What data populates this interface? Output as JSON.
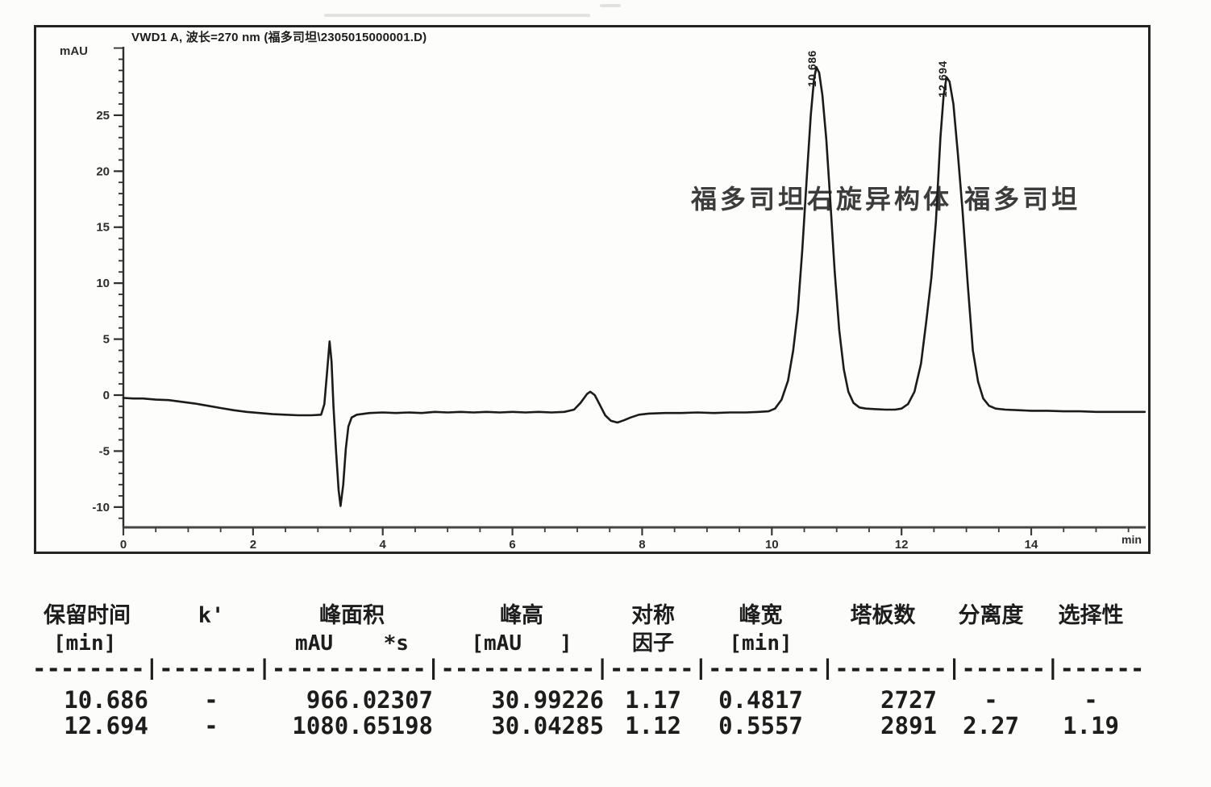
{
  "chromatogram": {
    "title": "VWD1 A, 波长=270 nm (福多司坦\\2305015000001.D)",
    "y_axis_unit": "mAU",
    "x_axis_unit": "min",
    "annotation": "福多司坦右旋异构体 福多司坦"
  },
  "chart_data": {
    "type": "line",
    "title": "VWD1 A, 波长=270 nm (福多司坦\\2305015000001.D)",
    "xlabel": "min",
    "ylabel": "mAU",
    "xlim": [
      0,
      15.8
    ],
    "ylim": [
      -12.5,
      31
    ],
    "x_ticks": [
      0,
      2,
      4,
      6,
      8,
      10,
      12,
      14
    ],
    "y_ticks": [
      25,
      20,
      15,
      10,
      5,
      0,
      -5,
      -10
    ],
    "grid": false,
    "legend": false,
    "peaks": [
      {
        "rt_label": "10.686",
        "rt": 10.686,
        "apex_mau": 29.3,
        "name": "福多司坦右旋异构体",
        "height_mau": 30.99226,
        "area": 966.02307
      },
      {
        "rt_label": "12.694",
        "rt": 12.694,
        "apex_mau": 28.4,
        "name": "福多司坦",
        "height_mau": 30.04285,
        "area": 1080.65198
      }
    ],
    "series": [
      {
        "name": "VWD1 A 270 nm",
        "points": [
          [
            0,
            -0.25
          ],
          [
            0.15,
            -0.3
          ],
          [
            0.3,
            -0.3
          ],
          [
            0.5,
            -0.4
          ],
          [
            0.7,
            -0.45
          ],
          [
            0.9,
            -0.6
          ],
          [
            1.1,
            -0.75
          ],
          [
            1.3,
            -0.95
          ],
          [
            1.5,
            -1.15
          ],
          [
            1.7,
            -1.35
          ],
          [
            1.9,
            -1.5
          ],
          [
            2.1,
            -1.6
          ],
          [
            2.3,
            -1.7
          ],
          [
            2.5,
            -1.75
          ],
          [
            2.7,
            -1.8
          ],
          [
            2.9,
            -1.8
          ],
          [
            3.05,
            -1.75
          ],
          [
            3.1,
            -0.8
          ],
          [
            3.14,
            2.0
          ],
          [
            3.18,
            4.8
          ],
          [
            3.21,
            3.0
          ],
          [
            3.24,
            -1.0
          ],
          [
            3.28,
            -5.0
          ],
          [
            3.32,
            -8.5
          ],
          [
            3.35,
            -9.9
          ],
          [
            3.39,
            -8.0
          ],
          [
            3.43,
            -4.8
          ],
          [
            3.47,
            -2.8
          ],
          [
            3.52,
            -2.0
          ],
          [
            3.6,
            -1.75
          ],
          [
            3.8,
            -1.6
          ],
          [
            4.0,
            -1.55
          ],
          [
            4.2,
            -1.6
          ],
          [
            4.4,
            -1.55
          ],
          [
            4.6,
            -1.6
          ],
          [
            4.8,
            -1.5
          ],
          [
            5.0,
            -1.55
          ],
          [
            5.2,
            -1.5
          ],
          [
            5.4,
            -1.55
          ],
          [
            5.6,
            -1.5
          ],
          [
            5.8,
            -1.55
          ],
          [
            6.0,
            -1.5
          ],
          [
            6.2,
            -1.55
          ],
          [
            6.4,
            -1.5
          ],
          [
            6.6,
            -1.55
          ],
          [
            6.8,
            -1.5
          ],
          [
            6.95,
            -1.3
          ],
          [
            7.05,
            -0.7
          ],
          [
            7.15,
            0.1
          ],
          [
            7.2,
            0.3
          ],
          [
            7.27,
            0.0
          ],
          [
            7.35,
            -0.9
          ],
          [
            7.43,
            -1.8
          ],
          [
            7.52,
            -2.3
          ],
          [
            7.62,
            -2.45
          ],
          [
            7.72,
            -2.25
          ],
          [
            7.82,
            -2.0
          ],
          [
            7.95,
            -1.75
          ],
          [
            8.1,
            -1.65
          ],
          [
            8.35,
            -1.6
          ],
          [
            8.6,
            -1.6
          ],
          [
            8.85,
            -1.55
          ],
          [
            9.1,
            -1.6
          ],
          [
            9.35,
            -1.55
          ],
          [
            9.6,
            -1.55
          ],
          [
            9.8,
            -1.5
          ],
          [
            9.95,
            -1.45
          ],
          [
            10.05,
            -1.2
          ],
          [
            10.15,
            -0.4
          ],
          [
            10.25,
            1.3
          ],
          [
            10.33,
            4.0
          ],
          [
            10.4,
            7.5
          ],
          [
            10.47,
            13.0
          ],
          [
            10.54,
            19.5
          ],
          [
            10.6,
            25.0
          ],
          [
            10.65,
            28.2
          ],
          [
            10.686,
            29.3
          ],
          [
            10.73,
            28.8
          ],
          [
            10.78,
            26.8
          ],
          [
            10.84,
            22.8
          ],
          [
            10.9,
            17.5
          ],
          [
            10.97,
            11.0
          ],
          [
            11.04,
            5.8
          ],
          [
            11.11,
            2.3
          ],
          [
            11.18,
            0.3
          ],
          [
            11.26,
            -0.7
          ],
          [
            11.35,
            -1.1
          ],
          [
            11.45,
            -1.2
          ],
          [
            11.6,
            -1.25
          ],
          [
            11.75,
            -1.3
          ],
          [
            11.9,
            -1.3
          ],
          [
            12.0,
            -1.2
          ],
          [
            12.1,
            -0.8
          ],
          [
            12.2,
            0.3
          ],
          [
            12.3,
            2.8
          ],
          [
            12.38,
            6.5
          ],
          [
            12.46,
            10.5
          ],
          [
            12.53,
            15.5
          ],
          [
            12.6,
            23.0
          ],
          [
            12.65,
            26.8
          ],
          [
            12.694,
            28.4
          ],
          [
            12.74,
            28.0
          ],
          [
            12.8,
            26.0
          ],
          [
            12.87,
            21.5
          ],
          [
            12.94,
            16.5
          ],
          [
            13.02,
            10.0
          ],
          [
            13.1,
            4.0
          ],
          [
            13.18,
            1.2
          ],
          [
            13.26,
            -0.3
          ],
          [
            13.35,
            -0.95
          ],
          [
            13.45,
            -1.2
          ],
          [
            13.6,
            -1.3
          ],
          [
            13.8,
            -1.35
          ],
          [
            14.0,
            -1.4
          ],
          [
            14.25,
            -1.4
          ],
          [
            14.5,
            -1.45
          ],
          [
            14.75,
            -1.45
          ],
          [
            15.0,
            -1.5
          ],
          [
            15.25,
            -1.5
          ],
          [
            15.5,
            -1.5
          ],
          [
            15.75,
            -1.5
          ]
        ]
      }
    ]
  },
  "table": {
    "columns": [
      {
        "h1": "保留时间",
        "h2": "[min]"
      },
      {
        "h1": "k'",
        "h2": ""
      },
      {
        "h1": "峰面积",
        "h2": "mAU    *s"
      },
      {
        "h1": "峰高",
        "h2": "[mAU   ]"
      },
      {
        "h1": "对称",
        "h2": "因子"
      },
      {
        "h1": "峰宽",
        "h2": "[min]"
      },
      {
        "h1": "塔板数",
        "h2": ""
      },
      {
        "h1": "分离度",
        "h2": ""
      },
      {
        "h1": "选择性",
        "h2": ""
      }
    ],
    "separator": "--------|-------|-----------|-----------|------|--------|--------|------|------",
    "rows": [
      [
        "10.686",
        "-",
        "966.02307",
        "30.99226",
        "1.17",
        "0.4817",
        "2727",
        "-",
        "-"
      ],
      [
        "12.694",
        "-",
        "1080.65198",
        "30.04285",
        "1.12",
        "0.5557",
        "2891",
        "2.27",
        "1.19"
      ]
    ]
  }
}
